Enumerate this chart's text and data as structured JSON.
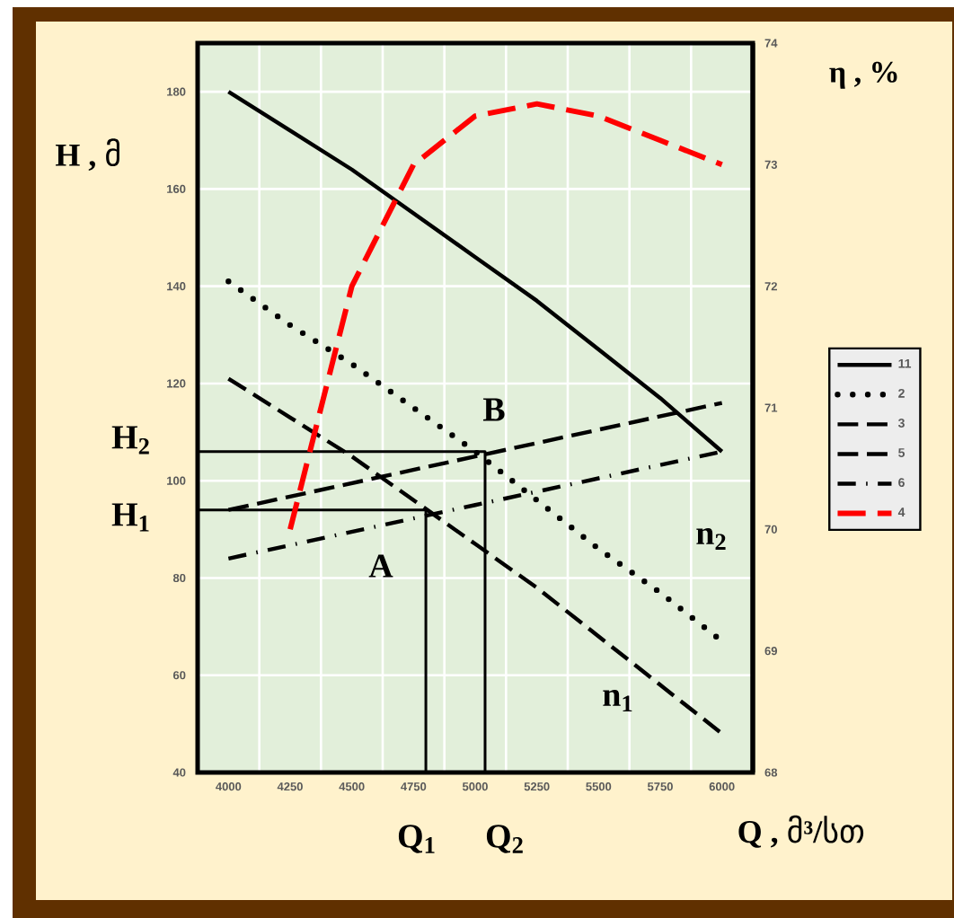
{
  "chart_data": {
    "type": "line",
    "xlabel": "Q , მ³/სთ",
    "ylabel": "H , მ",
    "y2label": "η , %",
    "xlim": [
      3875,
      6125
    ],
    "xticks": [
      4000,
      4250,
      4500,
      4750,
      5000,
      5250,
      5500,
      5750,
      6000
    ],
    "ylim": [
      40,
      190
    ],
    "yticks": [
      40,
      60,
      80,
      100,
      120,
      140,
      160,
      180
    ],
    "y2lim": [
      68,
      74
    ],
    "y2ticks": [
      68,
      69,
      70,
      71,
      72,
      73,
      74
    ],
    "grid": true,
    "legend": "right",
    "series": [
      {
        "name": "11",
        "color": "#000000",
        "line_style": "solid",
        "x": [
          4000,
          4250,
          4500,
          4750,
          5000,
          5250,
          5500,
          5750,
          6000
        ],
        "values": [
          180,
          172,
          164,
          155,
          146,
          137,
          127,
          117,
          106
        ]
      },
      {
        "name": "2",
        "color": "#000000",
        "line_style": "dotted",
        "x": [
          4000,
          4250,
          4500,
          4750,
          5000,
          5250,
          5500,
          5750,
          6000
        ],
        "values": [
          141,
          132,
          124,
          115,
          106,
          96,
          86,
          77,
          67
        ]
      },
      {
        "name": "3",
        "color": "#000000",
        "line_style": "dashed",
        "x": [
          4000,
          4250,
          4500,
          4750,
          5000,
          5250,
          5500,
          5750,
          6000
        ],
        "values": [
          121,
          113,
          105,
          96,
          87,
          78,
          68,
          58,
          48
        ]
      },
      {
        "name": "5",
        "color": "#000000",
        "line_style": "dashed",
        "x": [
          4000,
          5000,
          6000
        ],
        "values": [
          94,
          105,
          116
        ]
      },
      {
        "name": "6",
        "color": "#000000",
        "line_style": "dashdot",
        "x": [
          4000,
          5000,
          6000
        ],
        "values": [
          84,
          95,
          106
        ]
      },
      {
        "name": "4",
        "color": "#ff0000",
        "line_style": "dashed",
        "axis": "y2",
        "x": [
          4250,
          4500,
          4750,
          5000,
          5250,
          5500,
          5750,
          6000
        ],
        "values": [
          70.0,
          72.0,
          73.0,
          73.4,
          73.5,
          73.4,
          73.2,
          73.0
        ]
      },
      {
        "color": "#000000",
        "line_style": "solid",
        "x": [
          3875,
          4800,
          4800
        ],
        "values": [
          94,
          94,
          40
        ]
      },
      {
        "color": "#000000",
        "line_style": "solid",
        "x": [
          3875,
          5040,
          5040
        ],
        "values": [
          106,
          106,
          40
        ]
      }
    ],
    "annotations": [
      "A",
      "B",
      "n$_{1}$",
      "n$_{2}$",
      "H$_{1}$",
      "H$_{2}$",
      "Q$_{1}$",
      "Q$_{2}$"
    ]
  }
}
